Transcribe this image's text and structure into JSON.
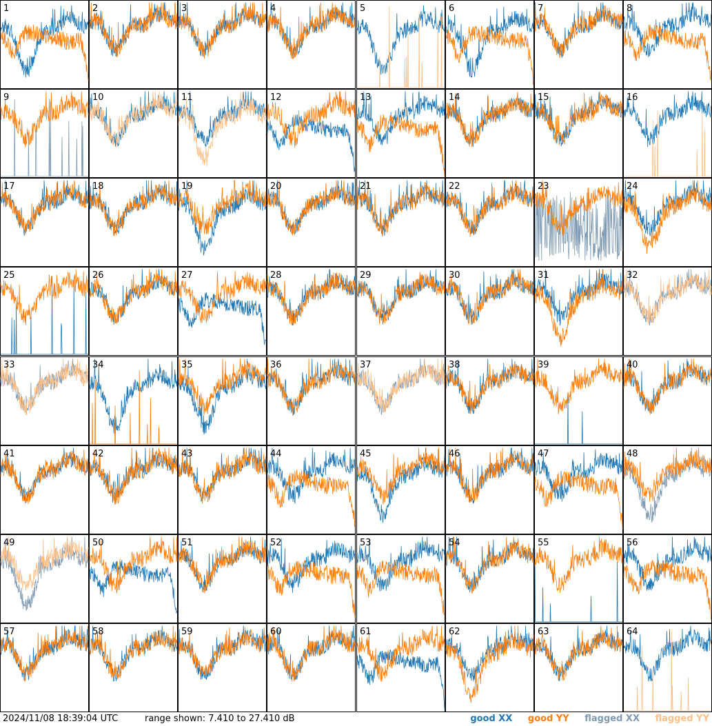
{
  "footer": {
    "timestamp": "2024/11/08 18:39:04 UTC",
    "range_text": "range shown: 7.410 to 27.410 dB"
  },
  "legend": [
    {
      "label": "good XX",
      "color": "#1f77b4"
    },
    {
      "label": "good YY",
      "color": "#ff7f0e"
    },
    {
      "label": "flagged XX",
      "color": "#7f9bb3"
    },
    {
      "label": "flagged YY",
      "color": "#ffbf86"
    }
  ],
  "chart_data": {
    "type": "line",
    "layout": "8x8 small multiples",
    "ylim": [
      7.41,
      27.41
    ],
    "yunits": "dB",
    "series_names": [
      "good XX",
      "good YY",
      "flagged XX",
      "flagged YY"
    ],
    "tiles": [
      {
        "id": "1",
        "xx": "good",
        "yy": "good",
        "xx_shape": "deep",
        "yy_shape": "sag"
      },
      {
        "id": "2",
        "xx": "good",
        "yy": "good"
      },
      {
        "id": "3",
        "xx": "good",
        "yy": "good"
      },
      {
        "id": "4",
        "xx": "good",
        "yy": "good"
      },
      {
        "id": "5",
        "xx": "good",
        "yy": "flagged",
        "xx_shape": "deep",
        "yy_shape": "spikes"
      },
      {
        "id": "6",
        "xx": "good",
        "yy": "good",
        "xx_shape": "deep",
        "yy_shape": "sag"
      },
      {
        "id": "7",
        "xx": "good",
        "yy": "good"
      },
      {
        "id": "8",
        "xx": "good",
        "yy": "good",
        "yy_shape": "sag"
      },
      {
        "id": "9",
        "xx": "flagged",
        "yy": "good",
        "xx_shape": "spikes"
      },
      {
        "id": "10",
        "xx": "good",
        "yy": "flagged"
      },
      {
        "id": "11",
        "xx": "good",
        "yy": "flagged",
        "yy_shape": "deep"
      },
      {
        "id": "12",
        "xx": "good",
        "yy": "good",
        "xx_shape": "sag"
      },
      {
        "id": "13",
        "xx": "good",
        "yy": "good",
        "yy_shape": "sag"
      },
      {
        "id": "14",
        "xx": "good",
        "yy": "good"
      },
      {
        "id": "15",
        "xx": "good",
        "yy": "good"
      },
      {
        "id": "16",
        "xx": "good",
        "yy": "flagged",
        "yy_shape": "spikes"
      },
      {
        "id": "17",
        "xx": "good",
        "yy": "good"
      },
      {
        "id": "18",
        "xx": "good",
        "yy": "good"
      },
      {
        "id": "19",
        "xx": "good",
        "yy": "good",
        "xx_shape": "deep"
      },
      {
        "id": "20",
        "xx": "good",
        "yy": "good"
      },
      {
        "id": "21",
        "xx": "good",
        "yy": "good"
      },
      {
        "id": "22",
        "xx": "good",
        "yy": "good"
      },
      {
        "id": "23",
        "xx": "flagged",
        "yy": "good",
        "xx_shape": "noisy"
      },
      {
        "id": "24",
        "xx": "good",
        "yy": "good",
        "yy_shape": "deep"
      },
      {
        "id": "25",
        "xx": "good",
        "yy": "good",
        "xx_shape": "spikes"
      },
      {
        "id": "26",
        "xx": "good",
        "yy": "good"
      },
      {
        "id": "27",
        "xx": "good",
        "yy": "good",
        "xx_shape": "sag"
      },
      {
        "id": "28",
        "xx": "good",
        "yy": "good"
      },
      {
        "id": "29",
        "xx": "good",
        "yy": "good"
      },
      {
        "id": "30",
        "xx": "good",
        "yy": "good"
      },
      {
        "id": "31",
        "xx": "good",
        "yy": "good",
        "yy_shape": "deep"
      },
      {
        "id": "32",
        "xx": "flagged",
        "yy": "flagged"
      },
      {
        "id": "33",
        "xx": "flagged",
        "yy": "flagged"
      },
      {
        "id": "34",
        "xx": "good",
        "yy": "good",
        "xx_shape": "deep",
        "yy_shape": "spikes"
      },
      {
        "id": "35",
        "xx": "good",
        "yy": "good",
        "xx_shape": "deep"
      },
      {
        "id": "36",
        "xx": "good",
        "yy": "good"
      },
      {
        "id": "37",
        "xx": "flagged",
        "yy": "flagged"
      },
      {
        "id": "38",
        "xx": "good",
        "yy": "good"
      },
      {
        "id": "39",
        "xx": "good",
        "yy": "good",
        "xx_shape": "spikes"
      },
      {
        "id": "40",
        "xx": "good",
        "yy": "good"
      },
      {
        "id": "41",
        "xx": "good",
        "yy": "good"
      },
      {
        "id": "42",
        "xx": "good",
        "yy": "good"
      },
      {
        "id": "43",
        "xx": "good",
        "yy": "good"
      },
      {
        "id": "44",
        "xx": "good",
        "yy": "good",
        "yy_shape": "sag"
      },
      {
        "id": "45",
        "xx": "good",
        "yy": "good",
        "xx_shape": "deep"
      },
      {
        "id": "46",
        "xx": "good",
        "yy": "good"
      },
      {
        "id": "47",
        "xx": "good",
        "yy": "good",
        "yy_shape": "sag"
      },
      {
        "id": "48",
        "xx": "flagged",
        "yy": "good",
        "xx_shape": "deep"
      },
      {
        "id": "49",
        "xx": "flagged",
        "yy": "flagged",
        "xx_shape": "deep"
      },
      {
        "id": "50",
        "xx": "good",
        "yy": "good",
        "xx_shape": "sag"
      },
      {
        "id": "51",
        "xx": "good",
        "yy": "good"
      },
      {
        "id": "52",
        "xx": "good",
        "yy": "good",
        "yy_shape": "sag"
      },
      {
        "id": "53",
        "xx": "good",
        "yy": "good",
        "yy_shape": "sag"
      },
      {
        "id": "54",
        "xx": "good",
        "yy": "good"
      },
      {
        "id": "55",
        "xx": "good",
        "yy": "good",
        "xx_shape": "spikes"
      },
      {
        "id": "56",
        "xx": "good",
        "yy": "good",
        "yy_shape": "sag"
      },
      {
        "id": "57",
        "xx": "good",
        "yy": "good"
      },
      {
        "id": "58",
        "xx": "good",
        "yy": "good"
      },
      {
        "id": "59",
        "xx": "good",
        "yy": "good"
      },
      {
        "id": "60",
        "xx": "good",
        "yy": "good"
      },
      {
        "id": "61",
        "xx": "good",
        "yy": "good",
        "xx_shape": "sag"
      },
      {
        "id": "62",
        "xx": "good",
        "yy": "good",
        "yy_shape": "deep"
      },
      {
        "id": "63",
        "xx": "good",
        "yy": "good"
      },
      {
        "id": "64",
        "xx": "good",
        "yy": "flagged",
        "yy_shape": "spikes"
      }
    ]
  }
}
